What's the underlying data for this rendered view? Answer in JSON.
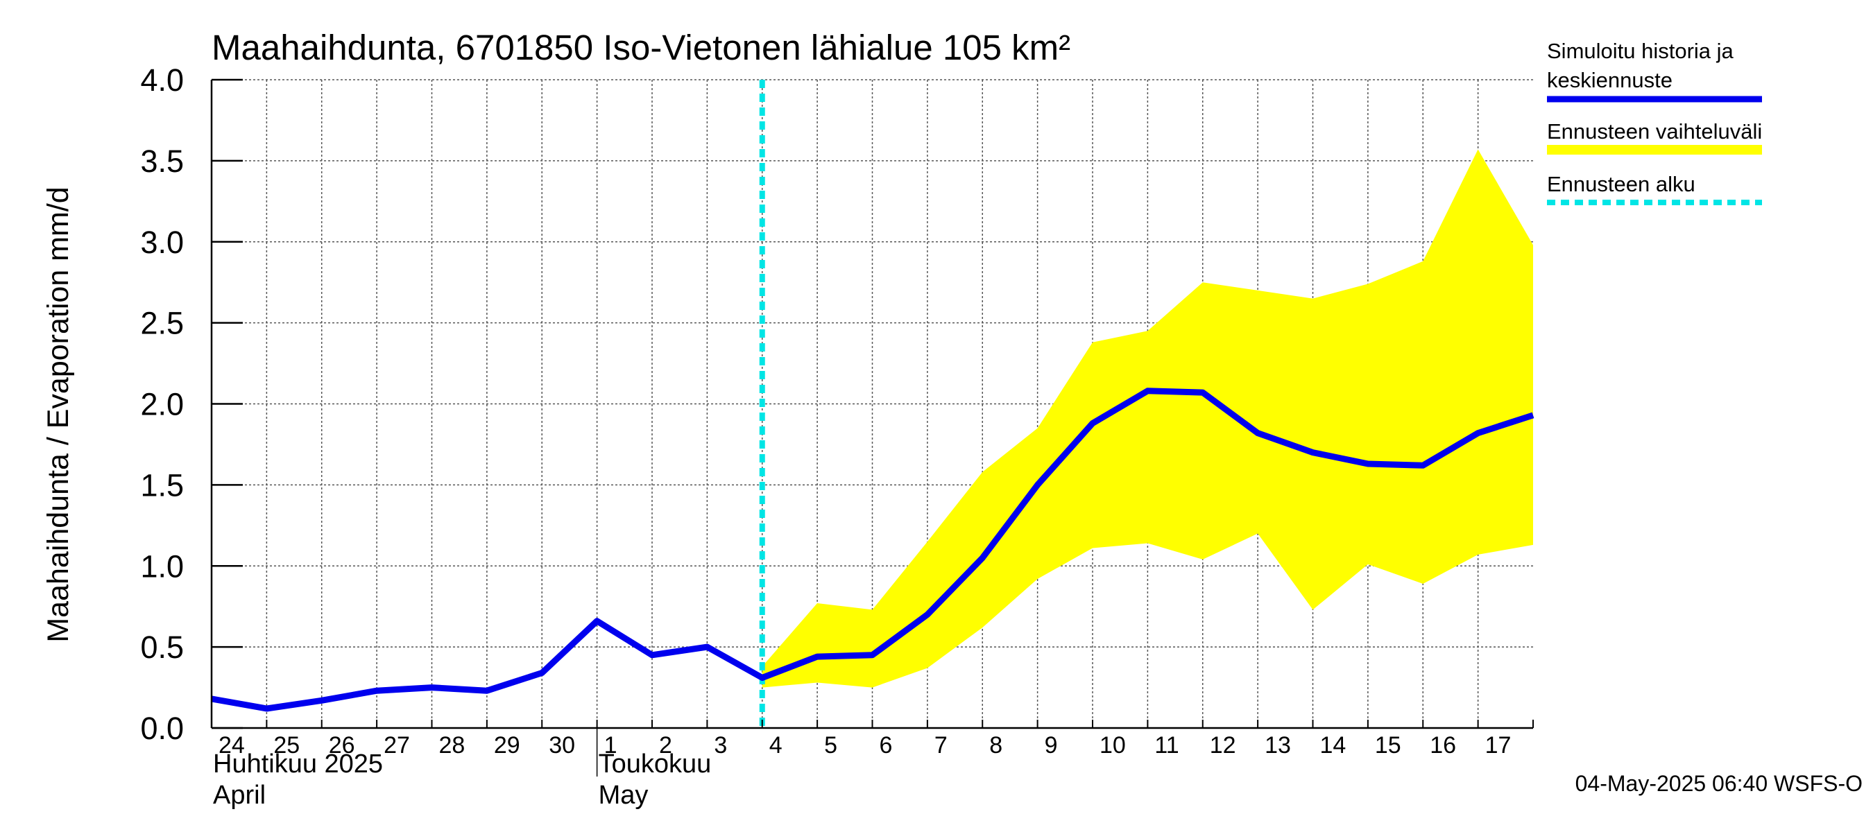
{
  "chart_data": {
    "type": "line",
    "title": "Maahaihdunta, 6701850 Iso-Vietonen lähialue 105 km²",
    "ylabel": "Maahaihdunta / Evaporation   mm/d",
    "ylim": [
      0,
      4
    ],
    "yticks": [
      "0.0",
      "0.5",
      "1.0",
      "1.5",
      "2.0",
      "2.5",
      "3.0",
      "3.5",
      "4.0"
    ],
    "grid": true,
    "x_start": "2025-04-24",
    "x_end": "2025-05-18",
    "x_ticks": [
      "24",
      "25",
      "26",
      "27",
      "28",
      "29",
      "30",
      "1",
      "2",
      "3",
      "4",
      "5",
      "6",
      "7",
      "8",
      "9",
      "10",
      "11",
      "12",
      "13",
      "14",
      "15",
      "16",
      "17"
    ],
    "months": [
      {
        "line1": "Huhtikuu  2025",
        "line2": "April",
        "start": "2025-04-24"
      },
      {
        "line1": "Toukokuu",
        "line2": "May",
        "start": "2025-05-01"
      }
    ],
    "series": [
      {
        "name": "Simuloitu historia ja keskiennuste",
        "color": "#0000ee",
        "points": [
          [
            "2025-04-24",
            0.18
          ],
          [
            "2025-04-25",
            0.12
          ],
          [
            "2025-04-26",
            0.17
          ],
          [
            "2025-04-27",
            0.23
          ],
          [
            "2025-04-28",
            0.25
          ],
          [
            "2025-04-29",
            0.23
          ],
          [
            "2025-04-30",
            0.34
          ],
          [
            "2025-05-01",
            0.66
          ],
          [
            "2025-05-02",
            0.45
          ],
          [
            "2025-05-03",
            0.5
          ],
          [
            "2025-05-04",
            0.31
          ],
          [
            "2025-05-05",
            0.44
          ],
          [
            "2025-05-06",
            0.45
          ],
          [
            "2025-05-07",
            0.7
          ],
          [
            "2025-05-08",
            1.05
          ],
          [
            "2025-05-09",
            1.5
          ],
          [
            "2025-05-10",
            1.88
          ],
          [
            "2025-05-11",
            2.08
          ],
          [
            "2025-05-12",
            2.07
          ],
          [
            "2025-05-13",
            1.82
          ],
          [
            "2025-05-14",
            1.7
          ],
          [
            "2025-05-15",
            1.63
          ],
          [
            "2025-05-16",
            1.62
          ],
          [
            "2025-05-17",
            1.82
          ],
          [
            "2025-05-18",
            1.93
          ]
        ]
      },
      {
        "name": "Ennusteen vaihteluväli",
        "color": "#ffff00",
        "type": "band",
        "upper": [
          [
            "2025-05-04",
            0.38
          ],
          [
            "2025-05-05",
            0.77
          ],
          [
            "2025-05-06",
            0.73
          ],
          [
            "2025-05-07",
            1.15
          ],
          [
            "2025-05-08",
            1.58
          ],
          [
            "2025-05-09",
            1.85
          ],
          [
            "2025-05-10",
            2.38
          ],
          [
            "2025-05-11",
            2.45
          ],
          [
            "2025-05-12",
            2.75
          ],
          [
            "2025-05-13",
            2.7
          ],
          [
            "2025-05-14",
            2.65
          ],
          [
            "2025-05-15",
            2.74
          ],
          [
            "2025-05-16",
            2.88
          ],
          [
            "2025-05-17",
            3.57
          ],
          [
            "2025-05-18",
            2.98
          ]
        ],
        "lower": [
          [
            "2025-05-04",
            0.25
          ],
          [
            "2025-05-05",
            0.28
          ],
          [
            "2025-05-06",
            0.25
          ],
          [
            "2025-05-07",
            0.37
          ],
          [
            "2025-05-08",
            0.62
          ],
          [
            "2025-05-09",
            0.92
          ],
          [
            "2025-05-10",
            1.11
          ],
          [
            "2025-05-11",
            1.14
          ],
          [
            "2025-05-12",
            1.04
          ],
          [
            "2025-05-13",
            1.2
          ],
          [
            "2025-05-14",
            0.73
          ],
          [
            "2025-05-15",
            1.01
          ],
          [
            "2025-05-16",
            0.89
          ],
          [
            "2025-05-17",
            1.07
          ],
          [
            "2025-05-18",
            1.13
          ]
        ]
      }
    ],
    "forecast_start": {
      "name": "Ennusteen alku",
      "date": "2025-05-04",
      "color": "#00e5e5"
    },
    "legend": {
      "placement": "right",
      "items": [
        {
          "label_line1": "Simuloitu historia ja",
          "label_line2": "keskiennuste",
          "color": "#0000ee",
          "style": "solid"
        },
        {
          "label_line1": "Ennusteen vaihteluväli",
          "label_line2": "",
          "color": "#ffff00",
          "style": "band"
        },
        {
          "label_line1": "Ennusteen alku",
          "label_line2": "",
          "color": "#00e5e5",
          "style": "dashed"
        }
      ]
    },
    "footer": "04-May-2025 06:40 WSFS-O"
  }
}
